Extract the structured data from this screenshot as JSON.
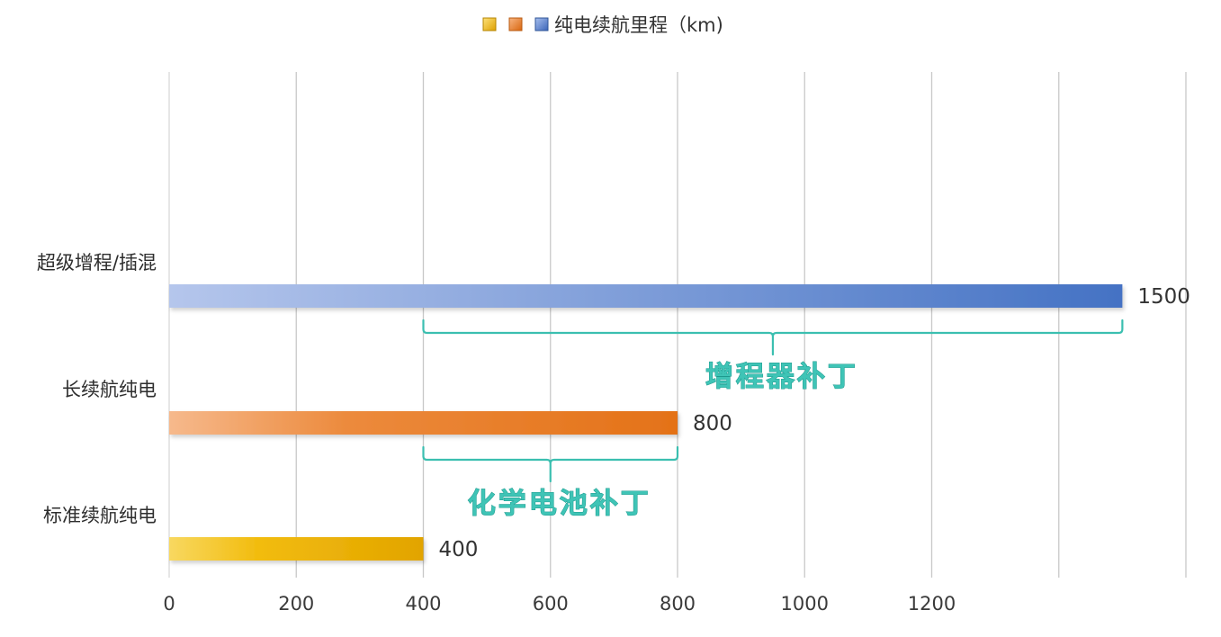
{
  "chart_data": {
    "type": "bar",
    "orientation": "horizontal",
    "categories": [
      "超级增程/插混",
      "长续航纯电",
      "标准续航纯电"
    ],
    "values": [
      1500,
      800,
      400
    ],
    "colors": [
      "#4472c4",
      "#e87722",
      "#f0b400"
    ],
    "legend": {
      "placement": "top",
      "label": "纯电续航里程（km)"
    },
    "xlim": [
      0,
      1600
    ],
    "x_ticks": [
      0,
      200,
      400,
      600,
      800,
      1000,
      1200
    ],
    "grid": true,
    "annotations": [
      {
        "label": "增程器补丁",
        "from": 400,
        "to": 1500,
        "category": "超级增程/插混"
      },
      {
        "label": "化学电池补丁",
        "from": 400,
        "to": 800,
        "category": "长续航纯电"
      }
    ]
  }
}
